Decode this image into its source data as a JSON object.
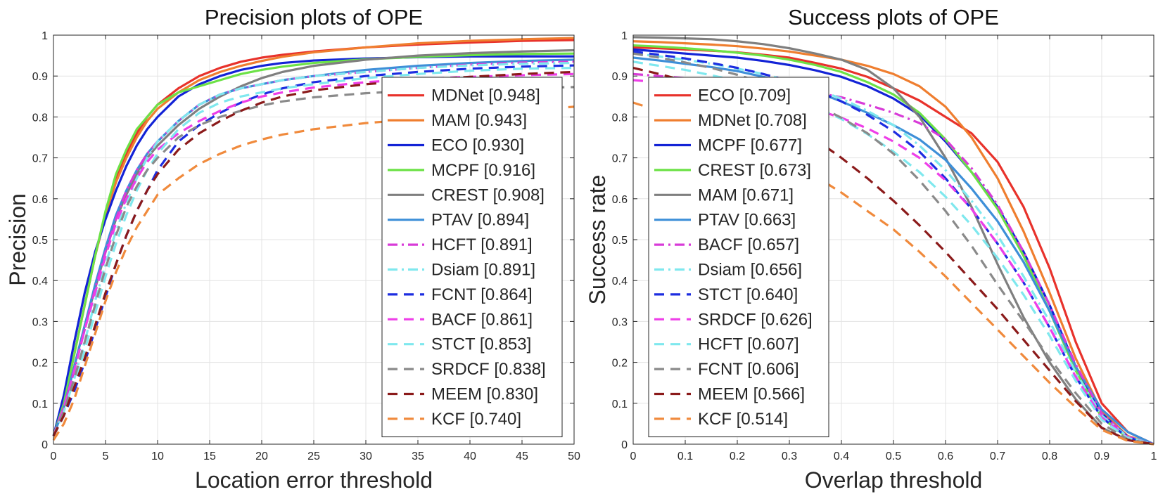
{
  "chart_data": [
    {
      "type": "line",
      "title": "Precision plots of OPE",
      "xlabel": "Location error threshold",
      "ylabel": "Precision",
      "xlim": [
        0,
        50
      ],
      "ylim": [
        0,
        1
      ],
      "xticks": [
        "0",
        "5",
        "10",
        "15",
        "20",
        "25",
        "30",
        "35",
        "40",
        "45",
        "50"
      ],
      "yticks": [
        "0",
        "0.1",
        "0.2",
        "0.3",
        "0.4",
        "0.5",
        "0.6",
        "0.7",
        "0.8",
        "0.9",
        "1"
      ],
      "grid": true,
      "legend_position": "bottom-right",
      "x": [
        0,
        1,
        2,
        3,
        4,
        5,
        6,
        7,
        8,
        9,
        10,
        12,
        14,
        16,
        18,
        20,
        22,
        25,
        30,
        35,
        40,
        45,
        50
      ],
      "series": [
        {
          "name": "MDNet [0.948]",
          "color": "#e8322b",
          "dash": "solid",
          "values": [
            0.02,
            0.1,
            0.22,
            0.34,
            0.46,
            0.56,
            0.65,
            0.71,
            0.76,
            0.8,
            0.83,
            0.87,
            0.9,
            0.92,
            0.935,
            0.945,
            0.952,
            0.96,
            0.97,
            0.977,
            0.982,
            0.986,
            0.988
          ]
        },
        {
          "name": "MAM [0.943]",
          "color": "#ef7e2f",
          "dash": "solid",
          "values": [
            0.02,
            0.1,
            0.22,
            0.34,
            0.46,
            0.56,
            0.64,
            0.7,
            0.75,
            0.79,
            0.82,
            0.86,
            0.89,
            0.91,
            0.925,
            0.937,
            0.947,
            0.958,
            0.97,
            0.98,
            0.986,
            0.99,
            0.993
          ]
        },
        {
          "name": "ECO [0.930]",
          "color": "#1323d6",
          "dash": "solid",
          "values": [
            0.02,
            0.12,
            0.25,
            0.37,
            0.47,
            0.55,
            0.62,
            0.68,
            0.73,
            0.77,
            0.8,
            0.85,
            0.88,
            0.9,
            0.915,
            0.925,
            0.932,
            0.938,
            0.943,
            0.946,
            0.948,
            0.948,
            0.948
          ]
        },
        {
          "name": "MCPF [0.916]",
          "color": "#6ce246",
          "dash": "solid",
          "values": [
            0.02,
            0.1,
            0.22,
            0.34,
            0.46,
            0.57,
            0.66,
            0.72,
            0.77,
            0.8,
            0.83,
            0.86,
            0.875,
            0.89,
            0.905,
            0.915,
            0.923,
            0.932,
            0.941,
            0.947,
            0.951,
            0.954,
            0.955
          ]
        },
        {
          "name": "CREST [0.908]",
          "color": "#7f7f7f",
          "dash": "solid",
          "values": [
            0.02,
            0.09,
            0.19,
            0.29,
            0.38,
            0.47,
            0.55,
            0.61,
            0.66,
            0.7,
            0.73,
            0.78,
            0.82,
            0.85,
            0.875,
            0.895,
            0.91,
            0.925,
            0.94,
            0.95,
            0.956,
            0.96,
            0.963
          ]
        },
        {
          "name": "PTAV [0.894]",
          "color": "#3e8fd8",
          "dash": "solid",
          "values": [
            0.02,
            0.09,
            0.19,
            0.29,
            0.39,
            0.48,
            0.56,
            0.62,
            0.67,
            0.71,
            0.74,
            0.79,
            0.83,
            0.855,
            0.87,
            0.88,
            0.89,
            0.9,
            0.915,
            0.925,
            0.932,
            0.937,
            0.94
          ]
        },
        {
          "name": "HCFT [0.891]",
          "color": "#d83bd8",
          "dash": "dashdot",
          "values": [
            0.02,
            0.09,
            0.18,
            0.28,
            0.38,
            0.47,
            0.55,
            0.62,
            0.67,
            0.71,
            0.74,
            0.79,
            0.83,
            0.855,
            0.87,
            0.88,
            0.89,
            0.9,
            0.91,
            0.92,
            0.928,
            0.933,
            0.935
          ]
        },
        {
          "name": "Dsiam [0.891]",
          "color": "#7fe8ee",
          "dash": "dashdot",
          "values": [
            0.02,
            0.08,
            0.16,
            0.25,
            0.35,
            0.44,
            0.52,
            0.59,
            0.65,
            0.7,
            0.74,
            0.79,
            0.83,
            0.855,
            0.87,
            0.88,
            0.89,
            0.9,
            0.91,
            0.92,
            0.926,
            0.93,
            0.932
          ]
        },
        {
          "name": "FCNT [0.864]",
          "color": "#1d2de0",
          "dash": "dash",
          "values": [
            0.02,
            0.07,
            0.13,
            0.2,
            0.28,
            0.36,
            0.44,
            0.51,
            0.57,
            0.62,
            0.67,
            0.74,
            0.78,
            0.81,
            0.835,
            0.855,
            0.87,
            0.885,
            0.9,
            0.91,
            0.918,
            0.923,
            0.926
          ]
        },
        {
          "name": "BACF [0.861]",
          "color": "#ee3ee8",
          "dash": "dash",
          "values": [
            0.02,
            0.09,
            0.18,
            0.28,
            0.37,
            0.46,
            0.54,
            0.6,
            0.65,
            0.69,
            0.72,
            0.76,
            0.79,
            0.815,
            0.835,
            0.85,
            0.86,
            0.872,
            0.885,
            0.893,
            0.898,
            0.902,
            0.905
          ]
        },
        {
          "name": "STCT [0.853]",
          "color": "#7fe8ee",
          "dash": "dash",
          "values": [
            0.02,
            0.07,
            0.15,
            0.23,
            0.32,
            0.41,
            0.49,
            0.56,
            0.62,
            0.67,
            0.71,
            0.77,
            0.81,
            0.835,
            0.85,
            0.86,
            0.87,
            0.88,
            0.895,
            0.905,
            0.913,
            0.918,
            0.92
          ]
        },
        {
          "name": "SRDCF [0.838]",
          "color": "#8a8a8a",
          "dash": "dash",
          "values": [
            0.02,
            0.08,
            0.16,
            0.25,
            0.34,
            0.43,
            0.51,
            0.58,
            0.63,
            0.67,
            0.7,
            0.75,
            0.78,
            0.8,
            0.815,
            0.828,
            0.838,
            0.848,
            0.858,
            0.865,
            0.868,
            0.871,
            0.873
          ]
        },
        {
          "name": "MEEM [0.830]",
          "color": "#8b1a1a",
          "dash": "dash",
          "values": [
            0.02,
            0.07,
            0.14,
            0.21,
            0.29,
            0.37,
            0.44,
            0.51,
            0.57,
            0.62,
            0.66,
            0.72,
            0.76,
            0.79,
            0.815,
            0.835,
            0.85,
            0.865,
            0.88,
            0.89,
            0.898,
            0.905,
            0.91
          ]
        },
        {
          "name": "KCF [0.740]",
          "color": "#f08a3c",
          "dash": "dash",
          "values": [
            0.01,
            0.05,
            0.11,
            0.19,
            0.27,
            0.35,
            0.42,
            0.48,
            0.53,
            0.57,
            0.61,
            0.65,
            0.685,
            0.71,
            0.73,
            0.745,
            0.757,
            0.77,
            0.785,
            0.795,
            0.805,
            0.815,
            0.825
          ]
        }
      ]
    },
    {
      "type": "line",
      "title": "Success plots of OPE",
      "xlabel": "Overlap threshold",
      "ylabel": "Success rate",
      "xlim": [
        0,
        1
      ],
      "ylim": [
        0,
        1
      ],
      "xticks": [
        "0",
        "0.1",
        "0.2",
        "0.3",
        "0.4",
        "0.5",
        "0.6",
        "0.7",
        "0.8",
        "0.9",
        "1"
      ],
      "yticks": [
        "0",
        "0.1",
        "0.2",
        "0.3",
        "0.4",
        "0.5",
        "0.6",
        "0.7",
        "0.8",
        "0.9",
        "1"
      ],
      "grid": true,
      "legend_position": "bottom-left",
      "x": [
        0,
        0.05,
        0.1,
        0.15,
        0.2,
        0.25,
        0.3,
        0.35,
        0.4,
        0.45,
        0.5,
        0.55,
        0.6,
        0.65,
        0.7,
        0.75,
        0.8,
        0.85,
        0.9,
        0.95,
        1.0
      ],
      "series": [
        {
          "name": "ECO [0.709]",
          "color": "#e8322b",
          "dash": "solid",
          "values": [
            0.97,
            0.968,
            0.965,
            0.962,
            0.958,
            0.952,
            0.945,
            0.932,
            0.918,
            0.898,
            0.87,
            0.84,
            0.8,
            0.76,
            0.69,
            0.58,
            0.43,
            0.25,
            0.1,
            0.03,
            0.0
          ]
        },
        {
          "name": "MDNet [0.708]",
          "color": "#ef7e2f",
          "dash": "solid",
          "values": [
            0.985,
            0.983,
            0.98,
            0.977,
            0.973,
            0.967,
            0.96,
            0.95,
            0.94,
            0.925,
            0.905,
            0.875,
            0.825,
            0.75,
            0.65,
            0.52,
            0.37,
            0.21,
            0.08,
            0.02,
            0.0
          ]
        },
        {
          "name": "MCPF [0.677]",
          "color": "#1323d6",
          "dash": "solid",
          "values": [
            0.965,
            0.96,
            0.955,
            0.95,
            0.945,
            0.937,
            0.927,
            0.914,
            0.898,
            0.875,
            0.845,
            0.805,
            0.74,
            0.665,
            0.58,
            0.47,
            0.34,
            0.19,
            0.075,
            0.018,
            0.0
          ]
        },
        {
          "name": "CREST [0.673]",
          "color": "#6ce246",
          "dash": "solid",
          "values": [
            0.975,
            0.972,
            0.968,
            0.963,
            0.957,
            0.95,
            0.94,
            0.927,
            0.91,
            0.885,
            0.855,
            0.81,
            0.745,
            0.665,
            0.575,
            0.46,
            0.325,
            0.18,
            0.065,
            0.015,
            0.0
          ]
        },
        {
          "name": "MAM [0.671]",
          "color": "#7f7f7f",
          "dash": "solid",
          "values": [
            0.995,
            0.994,
            0.992,
            0.99,
            0.985,
            0.978,
            0.968,
            0.955,
            0.94,
            0.915,
            0.87,
            0.8,
            0.7,
            0.58,
            0.44,
            0.31,
            0.2,
            0.11,
            0.04,
            0.01,
            0.0
          ]
        },
        {
          "name": "PTAV [0.663]",
          "color": "#3e8fd8",
          "dash": "solid",
          "values": [
            0.945,
            0.938,
            0.93,
            0.922,
            0.912,
            0.898,
            0.882,
            0.862,
            0.838,
            0.81,
            0.78,
            0.745,
            0.695,
            0.625,
            0.545,
            0.445,
            0.325,
            0.19,
            0.085,
            0.03,
            0.0
          ]
        },
        {
          "name": "BACF [0.657]",
          "color": "#d83bd8",
          "dash": "dashdot",
          "values": [
            0.905,
            0.9,
            0.895,
            0.89,
            0.885,
            0.878,
            0.87,
            0.86,
            0.848,
            0.83,
            0.81,
            0.785,
            0.745,
            0.675,
            0.585,
            0.47,
            0.34,
            0.195,
            0.075,
            0.018,
            0.0
          ]
        },
        {
          "name": "Dsiam [0.656]",
          "color": "#7fe8ee",
          "dash": "dashdot",
          "values": [
            0.955,
            0.948,
            0.94,
            0.93,
            0.918,
            0.905,
            0.888,
            0.868,
            0.845,
            0.815,
            0.78,
            0.73,
            0.67,
            0.595,
            0.51,
            0.41,
            0.3,
            0.175,
            0.07,
            0.018,
            0.0
          ]
        },
        {
          "name": "STCT [0.640]",
          "color": "#1d2de0",
          "dash": "dash",
          "values": [
            0.96,
            0.952,
            0.943,
            0.932,
            0.92,
            0.905,
            0.888,
            0.865,
            0.838,
            0.805,
            0.765,
            0.715,
            0.65,
            0.575,
            0.49,
            0.395,
            0.285,
            0.165,
            0.065,
            0.016,
            0.0
          ]
        },
        {
          "name": "SRDCF [0.626]",
          "color": "#ee3ee8",
          "dash": "dash",
          "values": [
            0.89,
            0.885,
            0.878,
            0.87,
            0.86,
            0.848,
            0.835,
            0.818,
            0.798,
            0.772,
            0.74,
            0.7,
            0.645,
            0.575,
            0.49,
            0.395,
            0.285,
            0.165,
            0.065,
            0.016,
            0.0
          ]
        },
        {
          "name": "HCFT [0.607]",
          "color": "#7fe8ee",
          "dash": "dash",
          "values": [
            0.935,
            0.925,
            0.915,
            0.902,
            0.888,
            0.87,
            0.85,
            0.825,
            0.795,
            0.758,
            0.715,
            0.665,
            0.605,
            0.535,
            0.455,
            0.365,
            0.265,
            0.155,
            0.06,
            0.015,
            0.0
          ]
        },
        {
          "name": "FCNT [0.606]",
          "color": "#8a8a8a",
          "dash": "dash",
          "values": [
            0.955,
            0.945,
            0.933,
            0.92,
            0.903,
            0.883,
            0.858,
            0.83,
            0.798,
            0.76,
            0.71,
            0.645,
            0.57,
            0.485,
            0.39,
            0.3,
            0.21,
            0.125,
            0.05,
            0.012,
            0.0
          ]
        },
        {
          "name": "MEEM [0.566]",
          "color": "#8b1a1a",
          "dash": "dash",
          "values": [
            0.92,
            0.905,
            0.888,
            0.868,
            0.845,
            0.818,
            0.785,
            0.745,
            0.7,
            0.65,
            0.595,
            0.535,
            0.47,
            0.4,
            0.33,
            0.255,
            0.18,
            0.105,
            0.04,
            0.01,
            0.0
          ]
        },
        {
          "name": "KCF [0.514]",
          "color": "#f08a3c",
          "dash": "dash",
          "values": [
            0.835,
            0.815,
            0.795,
            0.772,
            0.748,
            0.72,
            0.69,
            0.655,
            0.615,
            0.57,
            0.525,
            0.47,
            0.41,
            0.345,
            0.28,
            0.215,
            0.15,
            0.09,
            0.035,
            0.008,
            0.0
          ]
        }
      ]
    }
  ]
}
